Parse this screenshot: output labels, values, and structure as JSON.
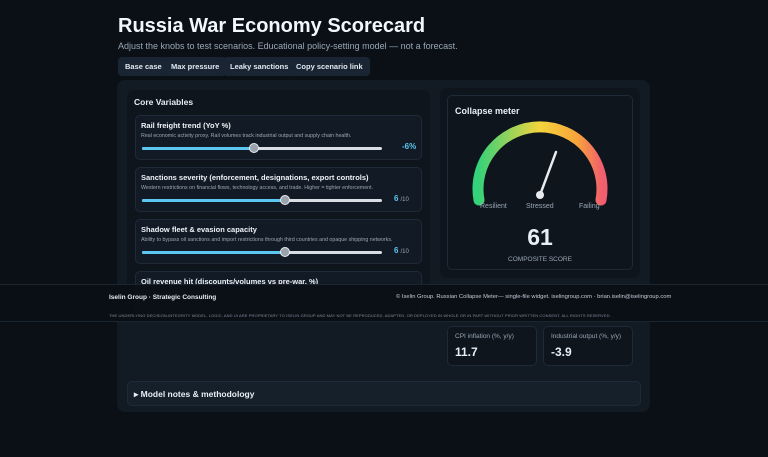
{
  "header": {
    "title": "Russia War Economy Scorecard",
    "subtitle": "Adjust the knobs to test scenarios. Educational policy-setting model — not a forecast.",
    "buttons": [
      "Base case",
      "Max pressure",
      "Leaky sanctions",
      "Copy scenario link"
    ]
  },
  "core_variables": {
    "heading": "Core Variables",
    "items": [
      {
        "title": "Rail freight trend (YoY %)",
        "description": "Real economic activity proxy. Rail volumes track industrial output and supply chain health.",
        "value": "-6%"
      },
      {
        "title": "Sanctions severity (enforcement, designations, export controls)",
        "description": "Western restrictions on financial flows, technology access, and trade. Higher = tighter enforcement.",
        "value": "6",
        "unit": "/10"
      },
      {
        "title": "Shadow fleet & evasion capacity",
        "description": "Ability to bypass oil sanctions and import restrictions through third countries and opaque shipping networks.",
        "value": "6",
        "unit": "/10"
      },
      {
        "title": "Oil revenue hit (discounts/volumes vs pre-war, %)"
      }
    ]
  },
  "meter": {
    "heading": "Collapse meter",
    "labels": [
      "Resilient",
      "Stressed",
      "Failing"
    ],
    "score": "61",
    "score_label": "COMPOSITE SCORE"
  },
  "metrics": [
    {
      "label": "CPI inflation (%, y/y)",
      "value": "11.7"
    },
    {
      "label": "Industrial output (%, y/y)",
      "value": "-3.9"
    }
  ],
  "notes": "▸ Model notes & methodology",
  "footer": {
    "brand": "Iselin Group · Strategic Consulting",
    "copyright": "© Iselin Group. Russian Collapse Meter— single-file widget. iselingroup.com · brian.iselin@iselingroup.com",
    "disclaimer": "The underlying decision-integrity model, logic, and UI are proprietary to Iselin Group and may not be reproduced, adapted, or deployed in whole or in part without prior written consent. All rights reserved."
  }
}
